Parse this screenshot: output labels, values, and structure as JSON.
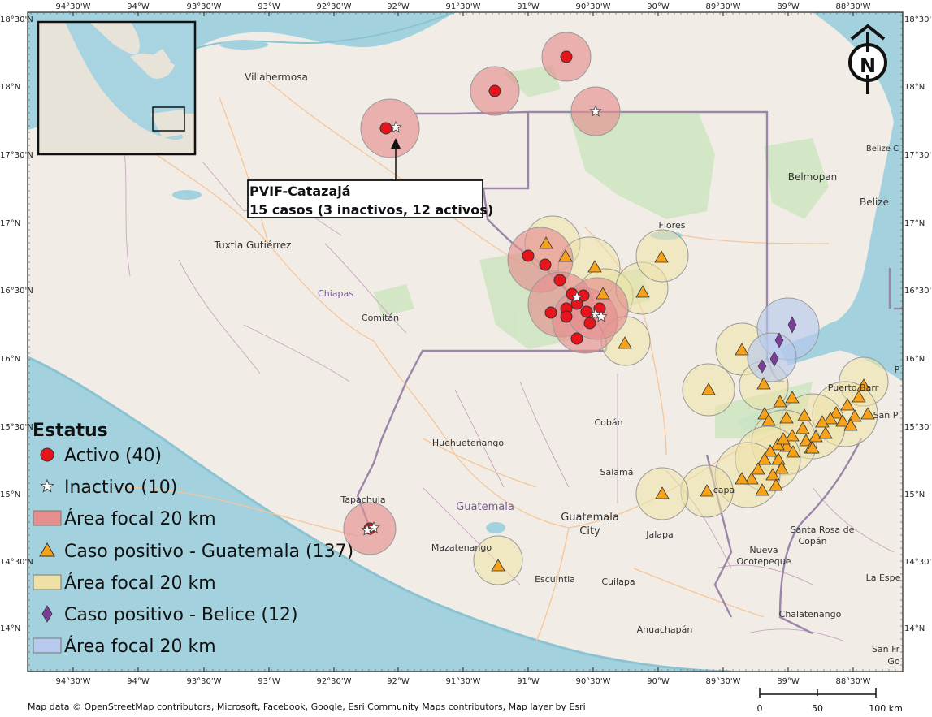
{
  "map": {
    "top_ticks": [
      "94°30'W",
      "94°W",
      "93°30'W",
      "93°W",
      "92°30'W",
      "92°W",
      "91°30'W",
      "91°W",
      "90°30'W",
      "90°W",
      "89°30'W",
      "89°W",
      "88°30'W"
    ],
    "bottom_ticks": [
      "94°30'W",
      "94°W",
      "93°30'W",
      "93°W",
      "92°30'W",
      "92°W",
      "91°30'W",
      "91°W",
      "90°30'W",
      "90°W",
      "89°30'W",
      "89°W",
      "88°30'W"
    ],
    "left_ticks": [
      "18°30'N",
      "18°N",
      "17°30'N",
      "17°N",
      "16°30'N",
      "16°N",
      "15°30'N",
      "15°N",
      "14°30'N",
      "14°N"
    ],
    "right_ticks": [
      "18°30'N",
      "18°N",
      "17°30'N",
      "17°N",
      "16°30'N",
      "16°N",
      "15°30'N",
      "15°N",
      "14°30'N",
      "14°N"
    ],
    "places": [
      "Villahermosa",
      "Tuxtla Gutiérrez",
      "Chiapas",
      "Comitán",
      "Flores",
      "Belmopan",
      "Belize",
      "Belize C",
      "Huehuetenango",
      "Cobán",
      "Salamá",
      "Guatemala",
      "Guatemala",
      "City",
      "Tapachula",
      "Mazatenango",
      "Escuintla",
      "Cuilapa",
      "Jalapa",
      "Santa Rosa de",
      "Copán",
      "Nueva",
      "Ocotepeque",
      "Chalatenango",
      "Ahuachapán",
      "La Espe",
      "San Fr",
      "Go",
      "Puerto Barr",
      "San P",
      "P",
      "capa"
    ],
    "callout": {
      "line1": "PVIF-Catazajá",
      "line2": "15 casos (3 inactivos, 12 activos)"
    },
    "north_label": "N",
    "scale": {
      "labels": [
        "0",
        "50",
        "100 km"
      ]
    },
    "credit": "Map data © OpenStreetMap contributors, Microsoft, Facebook, Google, Esri Community Maps contributors, Map layer by Esri"
  },
  "legend": {
    "title": "Estatus",
    "items": [
      {
        "label": "Activo (40)",
        "symbol": "red-circle",
        "color": "#e8141c"
      },
      {
        "label": "Inactivo (10)",
        "symbol": "white-star",
        "color": "#ffffff"
      },
      {
        "label": "Área focal 20 km",
        "symbol": "red-buffer",
        "color": "#e58f8f"
      },
      {
        "label": "Caso positivo - Guatemala (137)",
        "symbol": "orange-triangle",
        "color": "#f7a21b"
      },
      {
        "label": "Área focal 20 km",
        "symbol": "beige-buffer",
        "color": "#efe1a6"
      },
      {
        "label": "Caso positivo - Belice (12)",
        "symbol": "purple-diamond",
        "color": "#7a3e98"
      },
      {
        "label": "Área focal 20 km",
        "symbol": "blue-buffer",
        "color": "#b7c9ec"
      }
    ]
  }
}
